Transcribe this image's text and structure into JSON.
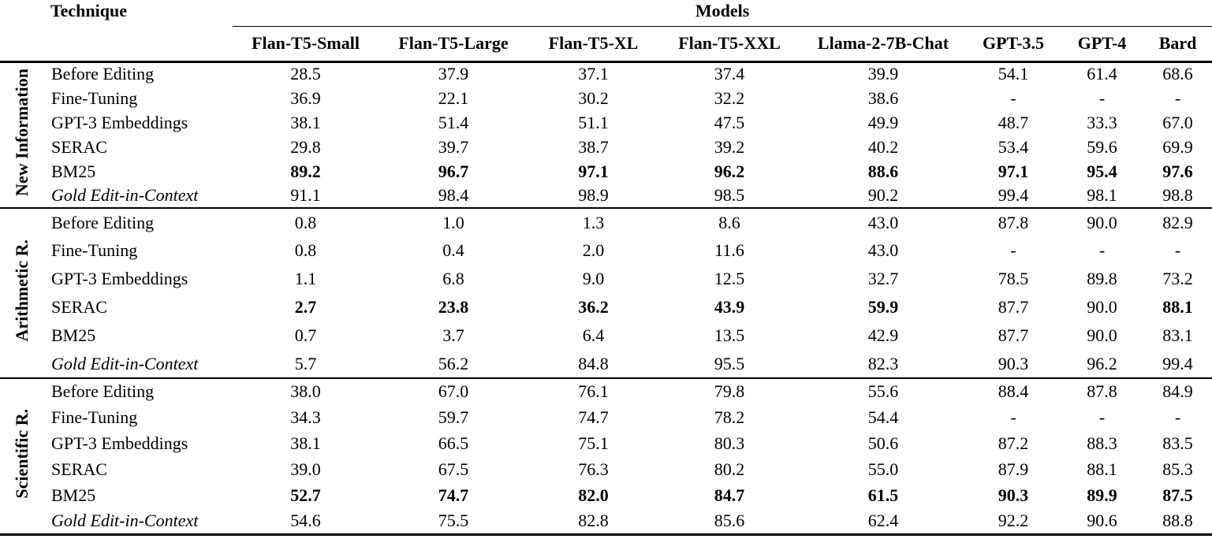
{
  "page": {
    "background_color": "#ffffff",
    "text_color": "#000000"
  },
  "table": {
    "technique_label": "Technique",
    "models_label": "Models",
    "columns": [
      "Flan-T5-Small",
      "Flan-T5-Large",
      "Flan-T5-XL",
      "Flan-T5-XXL",
      "Llama-2-7B-Chat",
      "GPT-3.5",
      "GPT-4",
      "Bard"
    ],
    "groups": [
      {
        "label": "New Information",
        "rows": [
          {
            "technique": "Before Editing",
            "italic": false,
            "bold": [],
            "values": [
              "28.5",
              "37.9",
              "37.1",
              "37.4",
              "39.9",
              "54.1",
              "61.4",
              "68.6"
            ]
          },
          {
            "technique": "Fine-Tuning",
            "italic": false,
            "bold": [],
            "values": [
              "36.9",
              "22.1",
              "30.2",
              "32.2",
              "38.6",
              "-",
              "-",
              "-"
            ]
          },
          {
            "technique": "GPT-3 Embeddings",
            "italic": false,
            "bold": [],
            "values": [
              "38.1",
              "51.4",
              "51.1",
              "47.5",
              "49.9",
              "48.7",
              "33.3",
              "67.0"
            ]
          },
          {
            "technique": "SERAC",
            "italic": false,
            "bold": [],
            "values": [
              "29.8",
              "39.7",
              "38.7",
              "39.2",
              "40.2",
              "53.4",
              "59.6",
              "69.9"
            ]
          },
          {
            "technique": "BM25",
            "italic": false,
            "bold": [
              0,
              1,
              2,
              3,
              4,
              5,
              6,
              7
            ],
            "values": [
              "89.2",
              "96.7",
              "97.1",
              "96.2",
              "88.6",
              "97.1",
              "95.4",
              "97.6"
            ]
          },
          {
            "technique": "Gold Edit-in-Context",
            "italic": true,
            "bold": [],
            "values": [
              "91.1",
              "98.4",
              "98.9",
              "98.5",
              "90.2",
              "99.4",
              "98.1",
              "98.8"
            ]
          }
        ]
      },
      {
        "label": "Arithmetic R.",
        "rows": [
          {
            "technique": "Before Editing",
            "italic": false,
            "bold": [],
            "values": [
              "0.8",
              "1.0",
              "1.3",
              "8.6",
              "43.0",
              "87.8",
              "90.0",
              "82.9"
            ]
          },
          {
            "technique": "Fine-Tuning",
            "italic": false,
            "bold": [],
            "values": [
              "0.8",
              "0.4",
              "2.0",
              "11.6",
              "43.0",
              "-",
              "-",
              "-"
            ]
          },
          {
            "technique": "GPT-3 Embeddings",
            "italic": false,
            "bold": [],
            "values": [
              "1.1",
              "6.8",
              "9.0",
              "12.5",
              "32.7",
              "78.5",
              "89.8",
              "73.2"
            ]
          },
          {
            "technique": "SERAC",
            "italic": false,
            "bold": [
              0,
              1,
              2,
              3,
              4,
              7
            ],
            "values": [
              "2.7",
              "23.8",
              "36.2",
              "43.9",
              "59.9",
              "87.7",
              "90.0",
              "88.1"
            ]
          },
          {
            "technique": "BM25",
            "italic": false,
            "bold": [],
            "values": [
              "0.7",
              "3.7",
              "6.4",
              "13.5",
              "42.9",
              "87.7",
              "90.0",
              "83.1"
            ]
          },
          {
            "technique": "Gold Edit-in-Context",
            "italic": true,
            "bold": [],
            "values": [
              "5.7",
              "56.2",
              "84.8",
              "95.5",
              "82.3",
              "90.3",
              "96.2",
              "99.4"
            ]
          }
        ]
      },
      {
        "label": "Scientific R.",
        "rows": [
          {
            "technique": "Before Editing",
            "italic": false,
            "bold": [],
            "values": [
              "38.0",
              "67.0",
              "76.1",
              "79.8",
              "55.6",
              "88.4",
              "87.8",
              "84.9"
            ]
          },
          {
            "technique": "Fine-Tuning",
            "italic": false,
            "bold": [],
            "values": [
              "34.3",
              "59.7",
              "74.7",
              "78.2",
              "54.4",
              "-",
              "-",
              "-"
            ]
          },
          {
            "technique": "GPT-3 Embeddings",
            "italic": false,
            "bold": [],
            "values": [
              "38.1",
              "66.5",
              "75.1",
              "80.3",
              "50.6",
              "87.2",
              "88.3",
              "83.5"
            ]
          },
          {
            "technique": "SERAC",
            "italic": false,
            "bold": [],
            "values": [
              "39.0",
              "67.5",
              "76.3",
              "80.2",
              "55.0",
              "87.9",
              "88.1",
              "85.3"
            ]
          },
          {
            "technique": "BM25",
            "italic": false,
            "bold": [
              0,
              1,
              2,
              3,
              4,
              5,
              6,
              7
            ],
            "values": [
              "52.7",
              "74.7",
              "82.0",
              "84.7",
              "61.5",
              "90.3",
              "89.9",
              "87.5"
            ]
          },
          {
            "technique": "Gold Edit-in-Context",
            "italic": true,
            "bold": [],
            "values": [
              "54.6",
              "75.5",
              "82.8",
              "85.6",
              "62.4",
              "92.2",
              "90.6",
              "88.8"
            ]
          }
        ]
      }
    ]
  }
}
